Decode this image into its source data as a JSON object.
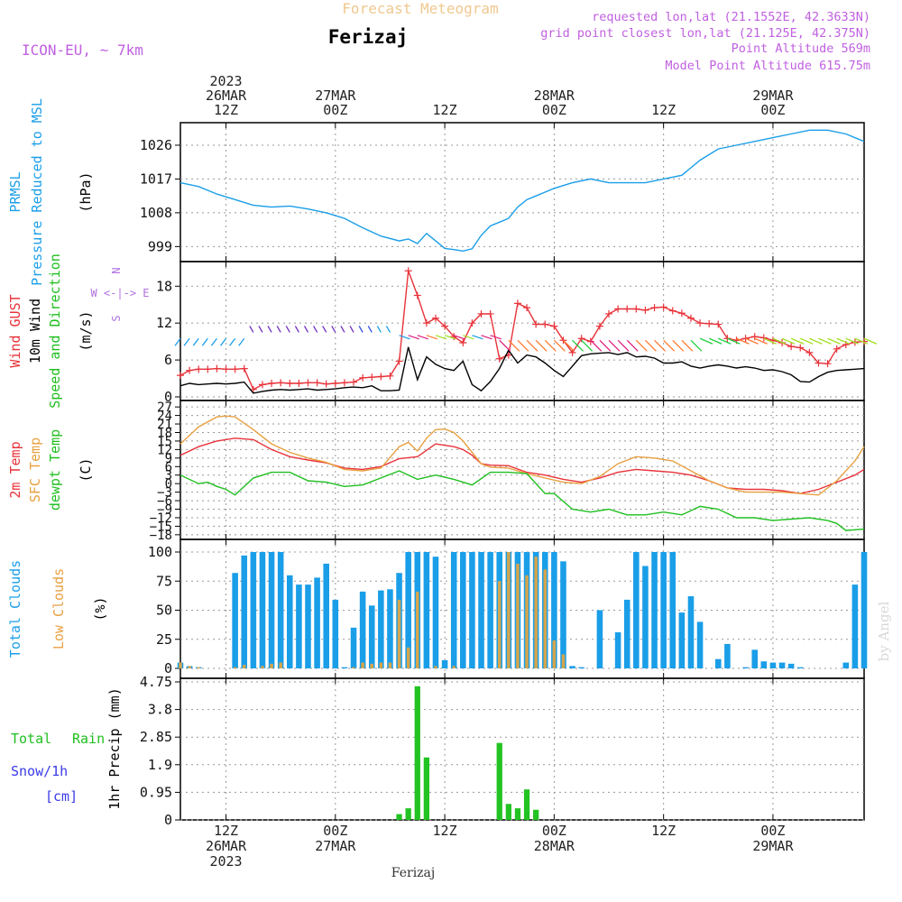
{
  "header": {
    "product": "Forecast Meteogram",
    "location": "Ferizaj",
    "model": "ICON-EU, ~ 7km",
    "requested": "requested lon,lat (21.1552E, 42.3633N)",
    "grid_point": "grid point closest lon,lat (21.125E, 42.375N)",
    "point_altitude": "Point Altitude 569m",
    "model_altitude": "Model Point Altitude 615.75m",
    "footer_location": "Ferizaj",
    "credit": "by Angel"
  },
  "time_axis": {
    "top": [
      {
        "hour": 12,
        "lines": [
          "2023",
          "26MAR",
          "12Z"
        ]
      },
      {
        "hour": 24,
        "lines": [
          "27MAR",
          "00Z"
        ]
      },
      {
        "hour": 36,
        "lines": [
          "12Z"
        ]
      },
      {
        "hour": 48,
        "lines": [
          "28MAR",
          "00Z"
        ]
      },
      {
        "hour": 60,
        "lines": [
          "12Z"
        ]
      },
      {
        "hour": 72,
        "lines": [
          "29MAR",
          "00Z"
        ]
      }
    ],
    "bottom": [
      {
        "hour": 12,
        "lines": [
          "12Z",
          "26MAR",
          "2023"
        ]
      },
      {
        "hour": 24,
        "lines": [
          "00Z",
          "27MAR"
        ]
      },
      {
        "hour": 36,
        "lines": [
          "12Z"
        ]
      },
      {
        "hour": 48,
        "lines": [
          "00Z",
          "28MAR"
        ]
      },
      {
        "hour": 60,
        "lines": [
          "12Z"
        ]
      },
      {
        "hour": 72,
        "lines": [
          "00Z",
          "29MAR"
        ]
      }
    ]
  },
  "chart_data": [
    {
      "type": "line",
      "panel": "pressure",
      "label_lines": [
        [
          "PRMSL"
        ],
        [
          "Pressure Reduced to MSL"
        ]
      ],
      "label_colors": [
        "#1a9ee8",
        "#1a9ee8"
      ],
      "unit": "(hPa)",
      "yticks": [
        999,
        1008,
        1017,
        1026
      ],
      "ylim": [
        995,
        1032
      ],
      "series": [
        {
          "name": "PRMSL",
          "color": "#1a9ee8",
          "x": [
            7,
            9,
            11,
            13,
            15,
            17,
            19,
            21,
            23,
            25,
            27,
            29,
            31,
            32,
            33,
            34,
            35,
            36,
            37,
            38,
            39,
            40,
            41,
            42,
            43,
            44,
            45,
            46,
            47,
            48,
            50,
            52,
            54,
            56,
            58,
            60,
            62,
            64,
            66,
            68,
            70,
            72,
            74,
            76,
            78,
            80,
            82
          ],
          "y": [
            1016,
            1015,
            1013,
            1011.5,
            1010,
            1009.5,
            1009.8,
            1009,
            1008,
            1006.5,
            1004,
            1001.8,
            1000.5,
            1001,
            999.8,
            1002.5,
            1000.5,
            998.5,
            998.2,
            997.8,
            998.4,
            1002,
            1004.5,
            1005.5,
            1006.5,
            1009.5,
            1011.5,
            1012.5,
            1013.5,
            1014.5,
            1016,
            1017,
            1016,
            1016,
            1016,
            1017,
            1018,
            1022,
            1025,
            1026,
            1027,
            1028,
            1029,
            1030,
            1030,
            1029,
            1027
          ]
        }
      ]
    },
    {
      "type": "line",
      "panel": "wind",
      "label_lines": [
        [
          "Wind GUST"
        ],
        [
          "10m Wind"
        ],
        [
          "Speed and Direction"
        ]
      ],
      "label_colors": [
        "#e8333a",
        "#000000",
        "#1fbf1f"
      ],
      "unit": "(m/s)",
      "compass": {
        "n": "N",
        "s": "S",
        "we": "W <-|-> E"
      },
      "yticks": [
        0,
        6,
        12,
        18
      ],
      "ylim": [
        0,
        22
      ],
      "series": [
        {
          "name": "Wind GUST",
          "color": "#e8333a",
          "x": [
            7,
            8,
            9,
            10,
            11,
            12,
            13,
            14,
            15,
            16,
            17,
            18,
            19,
            20,
            21,
            22,
            23,
            24,
            25,
            26,
            27,
            28,
            29,
            30,
            31,
            32,
            33,
            34,
            35,
            36,
            37,
            38,
            39,
            40,
            41,
            42,
            43,
            44,
            45,
            46,
            47,
            48,
            49,
            50,
            51,
            52,
            53,
            54,
            55,
            56,
            57,
            58,
            59,
            60,
            61,
            62,
            63,
            64,
            65,
            66,
            67,
            68,
            69,
            70,
            71,
            72,
            73,
            74,
            75,
            76,
            77,
            78,
            79,
            80,
            81,
            82
          ],
          "y": [
            3.5,
            4.3,
            4.5,
            4.5,
            4.6,
            4.5,
            4.5,
            4.6,
            1.2,
            2,
            2.2,
            2.3,
            2.2,
            2.2,
            2.3,
            2.3,
            2.1,
            2.2,
            2.3,
            2.4,
            3.1,
            3.2,
            3.3,
            3.4,
            5.8,
            20.5,
            16.5,
            12,
            12.8,
            11.5,
            9.8,
            8.8,
            12,
            13.5,
            13.5,
            6.2,
            6.8,
            15.2,
            14.5,
            11.8,
            11.8,
            11.5,
            9.2,
            7.2,
            9.5,
            9,
            11.5,
            13.5,
            14.3,
            14.3,
            14.3,
            14.1,
            14.5,
            14.6,
            14,
            13.6,
            12.8,
            12,
            11.9,
            11.8,
            9.5,
            9.2,
            9.5,
            9.8,
            9.6,
            9.2,
            8.8,
            8.2,
            8,
            7.2,
            5.5,
            5.4,
            7.8,
            8.5,
            8.9,
            9
          ]
        },
        {
          "name": "10m Wind",
          "color": "#000000",
          "x": [
            7,
            8,
            9,
            10,
            11,
            12,
            13,
            14,
            15,
            16,
            17,
            18,
            19,
            20,
            21,
            22,
            23,
            24,
            25,
            26,
            27,
            28,
            29,
            30,
            31,
            32,
            33,
            34,
            35,
            36,
            37,
            38,
            39,
            40,
            41,
            42,
            43,
            44,
            45,
            46,
            47,
            48,
            49,
            50,
            51,
            52,
            53,
            54,
            55,
            56,
            57,
            58,
            59,
            60,
            61,
            62,
            63,
            64,
            65,
            66,
            67,
            68,
            69,
            70,
            71,
            72,
            73,
            74,
            75,
            76,
            77,
            78,
            79,
            80,
            81,
            82
          ],
          "y": [
            1.8,
            2.2,
            2,
            2.1,
            2.2,
            2.1,
            2.2,
            2.4,
            0.6,
            0.9,
            1.1,
            1.2,
            1.1,
            1.2,
            1.3,
            1.1,
            1.2,
            1.3,
            1.5,
            1.6,
            1.5,
            1.8,
            1,
            1,
            1.1,
            8.1,
            2.8,
            6.5,
            5.3,
            4.6,
            4.3,
            5.8,
            2,
            1,
            2.5,
            4.6,
            7.6,
            5.5,
            6.8,
            6.5,
            5.5,
            4.3,
            3.3,
            5,
            6.7,
            7,
            7.1,
            7.2,
            6.9,
            7.2,
            6.5,
            6.6,
            6.3,
            5.5,
            5.5,
            5.7,
            5,
            4.7,
            5,
            5.2,
            5,
            4.7,
            4.9,
            4.7,
            4.3,
            4.4,
            4.1,
            3.6,
            2.5,
            2.4,
            3.3,
            4,
            4.3,
            4.4,
            4.5,
            4.6
          ]
        }
      ]
    },
    {
      "type": "line",
      "panel": "temperature",
      "label_lines": [
        [
          "2m Temp"
        ],
        [
          "SFC Temp"
        ],
        [
          "dewpt Temp"
        ]
      ],
      "label_colors": [
        "#e8333a",
        "#e8a040",
        "#1fbf1f"
      ],
      "unit": "(C)",
      "yticks": [
        -18,
        -15,
        -12,
        -9,
        -6,
        -3,
        0,
        3,
        6,
        9,
        12,
        15,
        18,
        21,
        24,
        27
      ],
      "ylim": [
        -19,
        28
      ],
      "series": [
        {
          "name": "2m Temp",
          "color": "#e8333a",
          "x": [
            7,
            9,
            11,
            13,
            15,
            17,
            19,
            21,
            23,
            25,
            27,
            29,
            31,
            33,
            35,
            36,
            37,
            38,
            39,
            40,
            41,
            43,
            45,
            47,
            49,
            51,
            53,
            55,
            57,
            59,
            61,
            63,
            65,
            67,
            69,
            71,
            73,
            75,
            77,
            79,
            81,
            82
          ],
          "y": [
            10,
            13,
            15,
            16,
            15.5,
            12,
            9.5,
            8.3,
            7.3,
            5.5,
            5,
            6,
            8.8,
            9.5,
            14,
            13.5,
            13,
            12,
            10,
            7,
            6.5,
            6.3,
            4,
            3,
            1.5,
            0.5,
            2,
            4,
            5,
            4.5,
            4,
            3,
            1,
            -1.5,
            -2,
            -2,
            -2.5,
            -3.5,
            -2,
            0.5,
            3,
            5
          ]
        },
        {
          "name": "SFC Temp",
          "color": "#e8a040",
          "x": [
            7,
            9,
            11,
            12,
            13,
            15,
            17,
            19,
            21,
            23,
            25,
            27,
            29,
            31,
            32,
            33,
            34,
            35,
            36,
            37,
            38,
            39,
            40,
            41,
            43,
            45,
            47,
            49,
            51,
            53,
            55,
            57,
            59,
            61,
            63,
            65,
            67,
            69,
            71,
            73,
            75,
            77,
            79,
            81,
            82
          ],
          "y": [
            14,
            20,
            23.5,
            23.8,
            23.5,
            19,
            14,
            11,
            9,
            7.5,
            5,
            4.5,
            5.5,
            13,
            14.5,
            11.5,
            16,
            19,
            19.2,
            18,
            15,
            11,
            7,
            5.8,
            5.5,
            3.5,
            2,
            0.5,
            0,
            2.5,
            7,
            9.5,
            9,
            8,
            4.5,
            1,
            -1.5,
            -3,
            -3,
            -3,
            -3.5,
            -4,
            1,
            8,
            13
          ]
        },
        {
          "name": "dewpt Temp",
          "color": "#1fbf1f",
          "x": [
            7,
            9,
            10,
            11,
            12,
            13,
            15,
            17,
            19,
            21,
            23,
            25,
            27,
            29,
            31,
            33,
            35,
            37,
            39,
            41,
            43,
            45,
            47,
            48,
            50,
            52,
            54,
            56,
            58,
            60,
            62,
            64,
            66,
            68,
            70,
            72,
            74,
            76,
            78,
            79,
            80,
            82
          ],
          "y": [
            3,
            0,
            0.5,
            -1,
            -2,
            -4,
            2,
            4,
            4,
            1,
            0.5,
            -1,
            -0.5,
            2,
            4.5,
            1.5,
            3,
            1.5,
            -0.5,
            4,
            4,
            3.5,
            -3.5,
            -3.5,
            -9,
            -10,
            -9,
            -11,
            -11,
            -10,
            -11,
            -8,
            -9,
            -12,
            -12,
            -13,
            -12.5,
            -12,
            -13,
            -14,
            -16.5,
            -16
          ]
        }
      ]
    },
    {
      "type": "bar",
      "panel": "clouds",
      "label_lines": [
        [
          "Total Clouds"
        ],
        [
          "Low Clouds"
        ]
      ],
      "label_colors": [
        "#1a9ee8",
        "#e8a040"
      ],
      "unit": "(%)",
      "yticks": [
        0,
        25,
        50,
        75,
        100
      ],
      "ylim": [
        0,
        100
      ],
      "x": [
        7,
        8,
        9,
        10,
        11,
        12,
        13,
        14,
        15,
        16,
        17,
        18,
        19,
        20,
        21,
        22,
        23,
        24,
        25,
        26,
        27,
        28,
        29,
        30,
        31,
        32,
        33,
        34,
        35,
        36,
        37,
        38,
        39,
        40,
        41,
        42,
        43,
        44,
        45,
        46,
        47,
        48,
        49,
        50,
        51,
        52,
        53,
        54,
        55,
        56,
        57,
        58,
        59,
        60,
        61,
        62,
        63,
        64,
        65,
        66,
        67,
        68,
        69,
        70,
        71,
        72,
        73,
        74,
        75,
        76,
        77,
        78,
        79,
        80,
        81,
        82
      ],
      "series": [
        {
          "name": "Total Clouds",
          "color": "#1a9ee8",
          "values": [
            5,
            2,
            1,
            0,
            0,
            0,
            82,
            97,
            100,
            100,
            100,
            100,
            80,
            72,
            72,
            78,
            90,
            59,
            1,
            35,
            66,
            54,
            67,
            68,
            82,
            100,
            100,
            100,
            96,
            7,
            100,
            100,
            100,
            100,
            100,
            100,
            100,
            100,
            100,
            100,
            100,
            100,
            92,
            2,
            1,
            0,
            50,
            0,
            31,
            59,
            100,
            88,
            100,
            100,
            100,
            48,
            62,
            40,
            0,
            8,
            21,
            0,
            1,
            16,
            6,
            5,
            5,
            4,
            1,
            0,
            0,
            0,
            0,
            5,
            72,
            100
          ]
        },
        {
          "name": "Low Clouds",
          "color": "#d4a54c",
          "values": [
            5,
            2,
            1,
            0,
            0,
            0,
            1,
            3,
            0,
            2,
            4,
            5,
            0,
            0,
            0,
            0,
            0,
            0,
            0,
            1,
            5,
            4,
            5,
            5,
            59,
            18,
            66,
            0,
            2,
            0,
            2,
            0,
            0,
            0,
            0,
            75,
            100,
            90,
            80,
            96,
            85,
            24,
            12,
            0,
            0,
            0,
            0,
            0,
            0,
            0,
            0,
            0,
            0,
            0,
            0,
            0,
            0,
            0,
            0,
            0,
            0,
            0,
            0,
            0,
            0,
            0,
            0,
            0,
            0,
            0,
            0,
            0,
            0,
            0,
            0,
            0
          ]
        }
      ]
    },
    {
      "type": "bar",
      "panel": "precipitation",
      "label_lines": [
        [
          "Total",
          "Rain"
        ],
        [
          "Snow/1h"
        ],
        [
          "[cm]"
        ]
      ],
      "label_colors": [
        "#1fbf1f",
        "#3a3ae8",
        "#3a3ae8"
      ],
      "unit": "1hr Precip (mm)",
      "yticks": [
        0,
        0.95,
        1.9,
        2.85,
        3.8,
        4.75
      ],
      "ylim": [
        0,
        4.75
      ],
      "x": [
        31,
        32,
        33,
        34,
        35,
        42,
        43,
        44,
        45,
        46
      ],
      "series": [
        {
          "name": "Total Rain",
          "color": "#22c322",
          "values": [
            0.2,
            0.4,
            4.6,
            2.15,
            0,
            2.65,
            0.55,
            0.4,
            1.05,
            0.35
          ]
        }
      ]
    }
  ]
}
